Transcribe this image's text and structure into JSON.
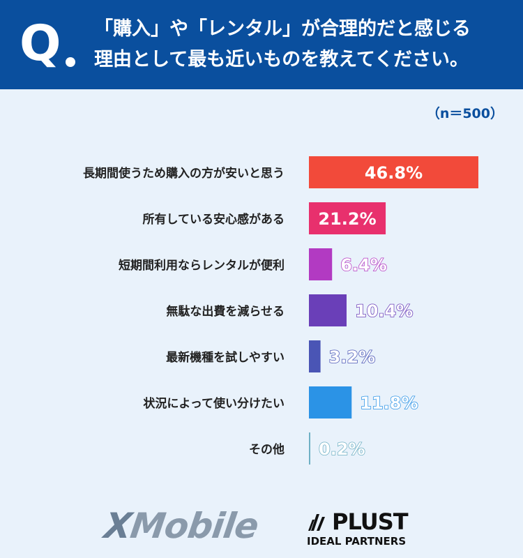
{
  "header": {
    "q_mark": "Q",
    "question_line1": "「購入」や「レンタル」が合理的だと感じる",
    "question_line2": "理由として最も近いものを教えてください。"
  },
  "sample_size": "（n＝500）",
  "chart_data": {
    "type": "bar",
    "orientation": "horizontal",
    "categories": [
      "長期間使うため購入の方が安いと思う",
      "所有している安心感がある",
      "短期間利用ならレンタルが便利",
      "無駄な出費を減らせる",
      "最新機種を試しやすい",
      "状況によって使い分けたい",
      "その他"
    ],
    "values": [
      46.8,
      21.2,
      6.4,
      10.4,
      3.2,
      11.8,
      0.2
    ],
    "value_labels": [
      "46.8%",
      "21.2%",
      "6.4%",
      "10.4%",
      "3.2%",
      "11.8%",
      "0.2%"
    ],
    "colors": [
      "#f24a3a",
      "#e8306d",
      "#b23ac2",
      "#6a3fb8",
      "#4a55b5",
      "#2b93e6",
      "#6fb0c4"
    ],
    "unit": "%",
    "xlim": [
      0,
      50
    ]
  },
  "logos": {
    "xmobile_x": "X",
    "xmobile_rest": "Mobile",
    "plust": "PLUST",
    "plust_sub": "IDEAL PARTNERS"
  }
}
